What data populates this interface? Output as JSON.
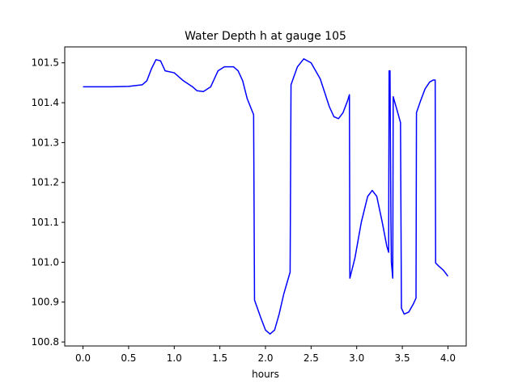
{
  "chart_data": {
    "type": "line",
    "title": "Water Depth h at gauge 105",
    "xlabel": "hours",
    "ylabel": "",
    "xlim": [
      -0.2,
      4.2
    ],
    "ylim": [
      100.79,
      101.54
    ],
    "x_ticks": [
      0.0,
      0.5,
      1.0,
      1.5,
      2.0,
      2.5,
      3.0,
      3.5,
      4.0
    ],
    "x_tick_labels": [
      "0.0",
      "0.5",
      "1.0",
      "1.5",
      "2.0",
      "2.5",
      "3.0",
      "3.5",
      "4.0"
    ],
    "y_ticks": [
      100.8,
      100.9,
      101.0,
      101.1,
      101.2,
      101.3,
      101.4,
      101.5
    ],
    "y_tick_labels": [
      "100.8",
      "100.9",
      "101.0",
      "101.1",
      "101.2",
      "101.3",
      "101.4",
      "101.5"
    ],
    "grid": false,
    "series": [
      {
        "color": "#0000ff",
        "points": [
          [
            0.0,
            101.44
          ],
          [
            0.3,
            101.44
          ],
          [
            0.5,
            101.441
          ],
          [
            0.65,
            101.445
          ],
          [
            0.7,
            101.455
          ],
          [
            0.75,
            101.485
          ],
          [
            0.8,
            101.508
          ],
          [
            0.85,
            101.505
          ],
          [
            0.9,
            101.48
          ],
          [
            1.0,
            101.475
          ],
          [
            1.1,
            101.455
          ],
          [
            1.2,
            101.44
          ],
          [
            1.25,
            101.43
          ],
          [
            1.32,
            101.428
          ],
          [
            1.4,
            101.44
          ],
          [
            1.48,
            101.48
          ],
          [
            1.55,
            101.49
          ],
          [
            1.65,
            101.49
          ],
          [
            1.7,
            101.48
          ],
          [
            1.75,
            101.455
          ],
          [
            1.8,
            101.41
          ],
          [
            1.87,
            101.37
          ],
          [
            1.88,
            100.905
          ],
          [
            1.95,
            100.86
          ],
          [
            2.0,
            100.83
          ],
          [
            2.05,
            100.82
          ],
          [
            2.1,
            100.83
          ],
          [
            2.15,
            100.87
          ],
          [
            2.2,
            100.92
          ],
          [
            2.27,
            100.975
          ],
          [
            2.28,
            101.445
          ],
          [
            2.35,
            101.49
          ],
          [
            2.42,
            101.51
          ],
          [
            2.5,
            101.5
          ],
          [
            2.6,
            101.46
          ],
          [
            2.7,
            101.39
          ],
          [
            2.75,
            101.365
          ],
          [
            2.8,
            101.36
          ],
          [
            2.85,
            101.375
          ],
          [
            2.9,
            101.405
          ],
          [
            2.92,
            101.42
          ],
          [
            2.925,
            100.96
          ],
          [
            2.98,
            101.01
          ],
          [
            3.05,
            101.1
          ],
          [
            3.12,
            101.165
          ],
          [
            3.17,
            101.18
          ],
          [
            3.22,
            101.165
          ],
          [
            3.28,
            101.1
          ],
          [
            3.33,
            101.04
          ],
          [
            3.35,
            101.025
          ],
          [
            3.355,
            101.48
          ],
          [
            3.365,
            101.48
          ],
          [
            3.375,
            101.1
          ],
          [
            3.38,
            101.0
          ],
          [
            3.395,
            100.96
          ],
          [
            3.4,
            101.415
          ],
          [
            3.45,
            101.375
          ],
          [
            3.48,
            101.35
          ],
          [
            3.49,
            100.885
          ],
          [
            3.52,
            100.87
          ],
          [
            3.57,
            100.875
          ],
          [
            3.62,
            100.895
          ],
          [
            3.65,
            100.91
          ],
          [
            3.655,
            101.375
          ],
          [
            3.7,
            101.405
          ],
          [
            3.75,
            101.435
          ],
          [
            3.8,
            101.452
          ],
          [
            3.84,
            101.457
          ],
          [
            3.86,
            101.457
          ],
          [
            3.865,
            100.998
          ],
          [
            3.9,
            100.99
          ],
          [
            3.95,
            100.98
          ],
          [
            4.0,
            100.965
          ]
        ]
      }
    ]
  }
}
